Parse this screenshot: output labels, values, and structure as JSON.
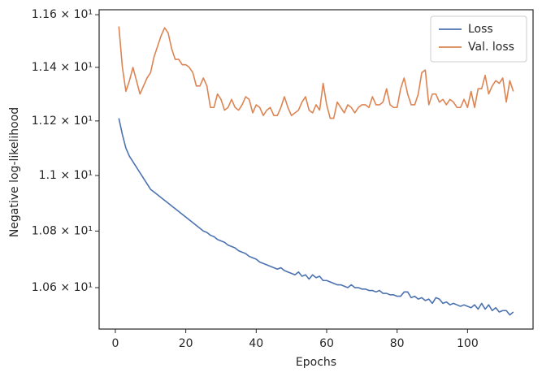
{
  "chart_data": {
    "type": "line",
    "xlabel": "Epochs",
    "ylabel": "Negative log-likelihood",
    "log_y": true,
    "grid": false,
    "legend": "upper right",
    "x": [
      1,
      2,
      3,
      4,
      5,
      6,
      7,
      8,
      9,
      10,
      11,
      12,
      13,
      14,
      15,
      16,
      17,
      18,
      19,
      20,
      21,
      22,
      23,
      24,
      25,
      26,
      27,
      28,
      29,
      30,
      31,
      32,
      33,
      34,
      35,
      36,
      37,
      38,
      39,
      40,
      41,
      42,
      43,
      44,
      45,
      46,
      47,
      48,
      49,
      50,
      51,
      52,
      53,
      54,
      55,
      56,
      57,
      58,
      59,
      60,
      61,
      62,
      63,
      64,
      65,
      66,
      67,
      68,
      69,
      70,
      71,
      72,
      73,
      74,
      75,
      76,
      77,
      78,
      79,
      80,
      81,
      82,
      83,
      84,
      85,
      86,
      87,
      88,
      89,
      90,
      91,
      92,
      93,
      94,
      95,
      96,
      97,
      98,
      99,
      100,
      101,
      102,
      103,
      104,
      105,
      106,
      107,
      108,
      109,
      110,
      111,
      112,
      113
    ],
    "series": [
      {
        "name": "Loss",
        "color": "#4c72b0",
        "values": [
          11.21,
          11.15,
          11.1,
          11.07,
          11.05,
          11.03,
          11.01,
          10.99,
          10.97,
          10.95,
          10.94,
          10.93,
          10.92,
          10.91,
          10.9,
          10.89,
          10.88,
          10.87,
          10.86,
          10.85,
          10.84,
          10.83,
          10.82,
          10.81,
          10.8,
          10.795,
          10.785,
          10.78,
          10.77,
          10.765,
          10.76,
          10.75,
          10.745,
          10.74,
          10.73,
          10.725,
          10.72,
          10.71,
          10.705,
          10.7,
          10.69,
          10.685,
          10.68,
          10.675,
          10.67,
          10.665,
          10.67,
          10.66,
          10.655,
          10.65,
          10.645,
          10.655,
          10.64,
          10.645,
          10.63,
          10.645,
          10.635,
          10.64,
          10.625,
          10.625,
          10.62,
          10.615,
          10.61,
          10.61,
          10.605,
          10.6,
          10.61,
          10.6,
          10.6,
          10.595,
          10.595,
          10.59,
          10.59,
          10.585,
          10.59,
          10.58,
          10.58,
          10.575,
          10.575,
          10.57,
          10.57,
          10.585,
          10.585,
          10.565,
          10.57,
          10.56,
          10.565,
          10.555,
          10.56,
          10.545,
          10.565,
          10.56,
          10.545,
          10.55,
          10.54,
          10.545,
          10.54,
          10.535,
          10.54,
          10.535,
          10.53,
          10.54,
          10.525,
          10.545,
          10.525,
          10.54,
          10.52,
          10.53,
          10.515,
          10.52,
          10.52,
          10.505,
          10.515
        ]
      },
      {
        "name": "Val. loss",
        "color": "#dd8452",
        "values": [
          11.555,
          11.4,
          11.31,
          11.35,
          11.4,
          11.35,
          11.3,
          11.33,
          11.36,
          11.38,
          11.44,
          11.48,
          11.52,
          11.55,
          11.53,
          11.47,
          11.43,
          11.43,
          11.41,
          11.41,
          11.4,
          11.38,
          11.33,
          11.33,
          11.36,
          11.33,
          11.25,
          11.25,
          11.3,
          11.28,
          11.24,
          11.25,
          11.28,
          11.25,
          11.24,
          11.26,
          11.29,
          11.28,
          11.23,
          11.26,
          11.25,
          11.22,
          11.24,
          11.25,
          11.22,
          11.22,
          11.25,
          11.29,
          11.25,
          11.22,
          11.23,
          11.24,
          11.27,
          11.29,
          11.24,
          11.23,
          11.26,
          11.24,
          11.34,
          11.26,
          11.21,
          11.21,
          11.27,
          11.25,
          11.23,
          11.26,
          11.25,
          11.23,
          11.25,
          11.26,
          11.26,
          11.25,
          11.29,
          11.26,
          11.26,
          11.27,
          11.32,
          11.26,
          11.25,
          11.25,
          11.32,
          11.36,
          11.3,
          11.26,
          11.26,
          11.3,
          11.38,
          11.39,
          11.26,
          11.3,
          11.3,
          11.27,
          11.28,
          11.26,
          11.28,
          11.27,
          11.25,
          11.25,
          11.28,
          11.25,
          11.31,
          11.25,
          11.32,
          11.32,
          11.37,
          11.3,
          11.33,
          11.35,
          11.34,
          11.36,
          11.27,
          11.35,
          11.31
        ]
      }
    ],
    "xlim": [
      -4.6,
      118.6
    ],
    "xticks": [
      0,
      20,
      40,
      60,
      80,
      100
    ],
    "ylim": [
      10.456,
      11.619
    ],
    "yticks": [
      {
        "value": 10.6,
        "label": "1.06 × 10¹"
      },
      {
        "value": 10.8,
        "label": "1.08 × 10¹"
      },
      {
        "value": 11.0,
        "label": "1.1 × 10¹"
      },
      {
        "value": 11.2,
        "label": "1.12 × 10¹"
      },
      {
        "value": 11.4,
        "label": "1.14 × 10¹"
      },
      {
        "value": 11.6,
        "label": "1.16 × 10¹"
      }
    ]
  }
}
